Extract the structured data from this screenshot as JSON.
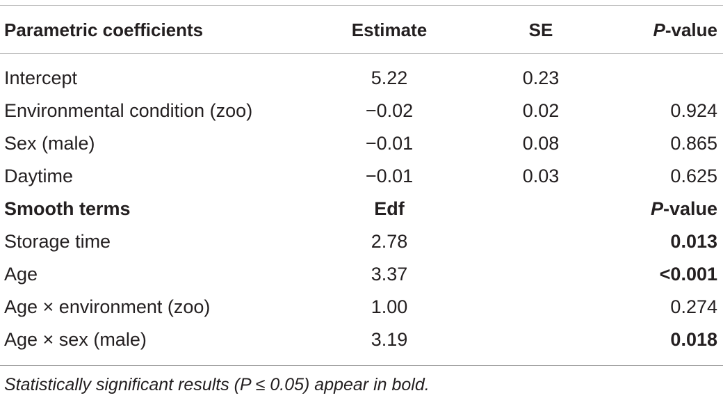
{
  "header": {
    "label": "Parametric coefficients",
    "estimate": "Estimate",
    "se": "SE",
    "p_prefix": "P",
    "p_suffix": "-value"
  },
  "rows": [
    {
      "label": "Intercept",
      "estimate": "5.22",
      "se": "0.23",
      "p": "",
      "p_bold": false
    },
    {
      "label": "Environmental condition (zoo)",
      "estimate": "−0.02",
      "se": "0.02",
      "p": "0.924",
      "p_bold": false
    },
    {
      "label": "Sex (male)",
      "estimate": "−0.01",
      "se": "0.08",
      "p": "0.865",
      "p_bold": false
    },
    {
      "label": "Daytime",
      "estimate": "−0.01",
      "se": "0.03",
      "p": "0.625",
      "p_bold": false
    }
  ],
  "smooth_header": {
    "label": "Smooth terms",
    "edf": "Edf",
    "p_prefix": "P",
    "p_suffix": "-value"
  },
  "smooth_rows": [
    {
      "label": "Storage time",
      "edf": "2.78",
      "p": "0.013",
      "p_bold": true
    },
    {
      "label": "Age",
      "edf": "3.37",
      "p": "<0.001",
      "p_bold": true
    },
    {
      "label": "Age × environment (zoo)",
      "edf": "1.00",
      "p": "0.274",
      "p_bold": false
    },
    {
      "label": "Age × sex (male)",
      "edf": "3.19",
      "p": "0.018",
      "p_bold": true
    }
  ],
  "footnote": "Statistically significant results (P ≤ 0.05) appear in bold."
}
